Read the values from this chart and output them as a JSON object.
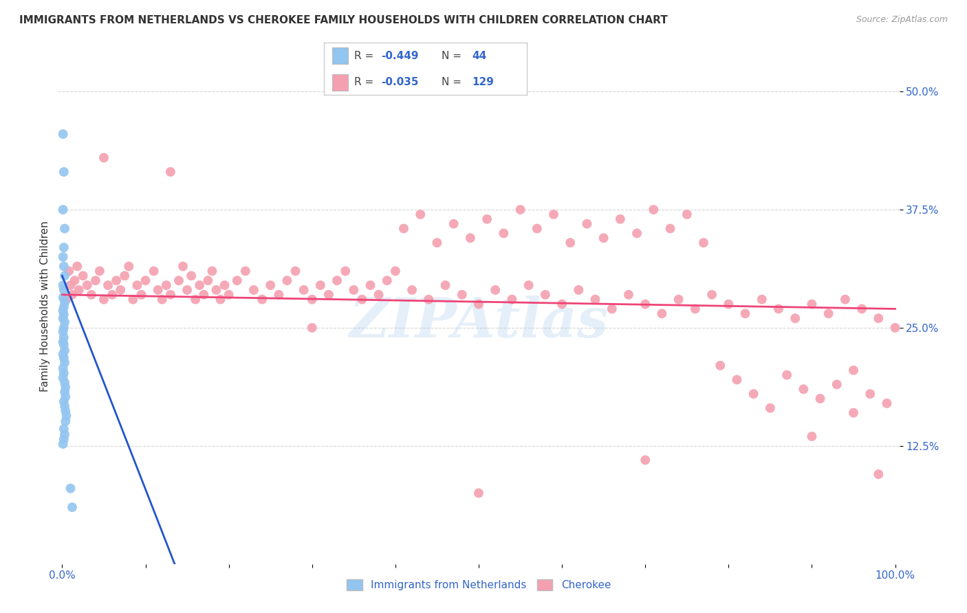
{
  "title": "IMMIGRANTS FROM NETHERLANDS VS CHEROKEE FAMILY HOUSEHOLDS WITH CHILDREN CORRELATION CHART",
  "source": "Source: ZipAtlas.com",
  "ylabel": "Family Households with Children",
  "yticks": [
    "12.5%",
    "25.0%",
    "37.5%",
    "50.0%"
  ],
  "ytick_vals": [
    0.125,
    0.25,
    0.375,
    0.5
  ],
  "legend_label_blue": "Immigrants from Netherlands",
  "legend_label_pink": "Cherokee",
  "blue_color": "#92C5F0",
  "pink_color": "#F4A0B0",
  "blue_line_color": "#2255CC",
  "pink_line_color": "#EE4477",
  "background_color": "#FFFFFF",
  "grid_color": "#CCCCCC",
  "text_color": "#333333",
  "axis_color": "#3366CC",
  "blue_scatter_x": [
    0.001,
    0.002,
    0.001,
    0.003,
    0.002,
    0.001,
    0.002,
    0.003,
    0.001,
    0.002,
    0.001,
    0.003,
    0.002,
    0.001,
    0.002,
    0.001,
    0.003,
    0.002,
    0.001,
    0.002,
    0.001,
    0.002,
    0.003,
    0.001,
    0.002,
    0.003,
    0.001,
    0.002,
    0.001,
    0.003,
    0.004,
    0.003,
    0.004,
    0.002,
    0.003,
    0.004,
    0.005,
    0.004,
    0.01,
    0.012,
    0.002,
    0.003,
    0.002,
    0.001
  ],
  "blue_scatter_y": [
    0.455,
    0.415,
    0.375,
    0.355,
    0.335,
    0.325,
    0.315,
    0.305,
    0.295,
    0.29,
    0.282,
    0.277,
    0.272,
    0.268,
    0.264,
    0.26,
    0.256,
    0.25,
    0.246,
    0.24,
    0.235,
    0.232,
    0.226,
    0.222,
    0.218,
    0.213,
    0.207,
    0.202,
    0.197,
    0.192,
    0.187,
    0.182,
    0.177,
    0.172,
    0.167,
    0.162,
    0.157,
    0.151,
    0.08,
    0.06,
    0.143,
    0.137,
    0.132,
    0.127
  ],
  "pink_scatter_x": [
    0.005,
    0.008,
    0.01,
    0.012,
    0.015,
    0.018,
    0.02,
    0.025,
    0.03,
    0.035,
    0.04,
    0.045,
    0.05,
    0.055,
    0.06,
    0.065,
    0.07,
    0.075,
    0.08,
    0.085,
    0.09,
    0.095,
    0.1,
    0.11,
    0.115,
    0.12,
    0.125,
    0.13,
    0.14,
    0.145,
    0.15,
    0.155,
    0.16,
    0.165,
    0.17,
    0.175,
    0.18,
    0.185,
    0.19,
    0.195,
    0.2,
    0.21,
    0.22,
    0.23,
    0.24,
    0.25,
    0.26,
    0.27,
    0.28,
    0.29,
    0.3,
    0.31,
    0.32,
    0.33,
    0.34,
    0.35,
    0.36,
    0.37,
    0.38,
    0.39,
    0.4,
    0.42,
    0.44,
    0.46,
    0.48,
    0.5,
    0.52,
    0.54,
    0.56,
    0.58,
    0.6,
    0.62,
    0.64,
    0.66,
    0.68,
    0.7,
    0.72,
    0.74,
    0.76,
    0.78,
    0.8,
    0.82,
    0.84,
    0.86,
    0.88,
    0.9,
    0.92,
    0.94,
    0.96,
    0.98,
    1.0,
    0.41,
    0.43,
    0.45,
    0.47,
    0.49,
    0.51,
    0.53,
    0.55,
    0.57,
    0.59,
    0.61,
    0.63,
    0.65,
    0.67,
    0.69,
    0.71,
    0.73,
    0.75,
    0.77,
    0.79,
    0.81,
    0.83,
    0.85,
    0.87,
    0.89,
    0.91,
    0.93,
    0.95,
    0.97,
    0.99,
    0.05,
    0.13,
    0.3,
    0.5,
    0.7,
    0.9,
    0.95,
    0.98
  ],
  "pink_scatter_y": [
    0.28,
    0.31,
    0.295,
    0.285,
    0.3,
    0.315,
    0.29,
    0.305,
    0.295,
    0.285,
    0.3,
    0.31,
    0.28,
    0.295,
    0.285,
    0.3,
    0.29,
    0.305,
    0.315,
    0.28,
    0.295,
    0.285,
    0.3,
    0.31,
    0.29,
    0.28,
    0.295,
    0.285,
    0.3,
    0.315,
    0.29,
    0.305,
    0.28,
    0.295,
    0.285,
    0.3,
    0.31,
    0.29,
    0.28,
    0.295,
    0.285,
    0.3,
    0.31,
    0.29,
    0.28,
    0.295,
    0.285,
    0.3,
    0.31,
    0.29,
    0.28,
    0.295,
    0.285,
    0.3,
    0.31,
    0.29,
    0.28,
    0.295,
    0.285,
    0.3,
    0.31,
    0.29,
    0.28,
    0.295,
    0.285,
    0.275,
    0.29,
    0.28,
    0.295,
    0.285,
    0.275,
    0.29,
    0.28,
    0.27,
    0.285,
    0.275,
    0.265,
    0.28,
    0.27,
    0.285,
    0.275,
    0.265,
    0.28,
    0.27,
    0.26,
    0.275,
    0.265,
    0.28,
    0.27,
    0.26,
    0.25,
    0.355,
    0.37,
    0.34,
    0.36,
    0.345,
    0.365,
    0.35,
    0.375,
    0.355,
    0.37,
    0.34,
    0.36,
    0.345,
    0.365,
    0.35,
    0.375,
    0.355,
    0.37,
    0.34,
    0.21,
    0.195,
    0.18,
    0.165,
    0.2,
    0.185,
    0.175,
    0.19,
    0.205,
    0.18,
    0.17,
    0.43,
    0.415,
    0.25,
    0.075,
    0.11,
    0.135,
    0.16,
    0.095
  ],
  "blue_line_x": [
    0.0,
    0.135
  ],
  "blue_line_y": [
    0.305,
    0.0
  ],
  "pink_line_x": [
    0.0,
    1.0
  ],
  "pink_line_y": [
    0.285,
    0.27
  ],
  "xlim": [
    -0.005,
    1.005
  ],
  "ylim": [
    0.0,
    0.545
  ],
  "watermark": "ZIPAtlas"
}
